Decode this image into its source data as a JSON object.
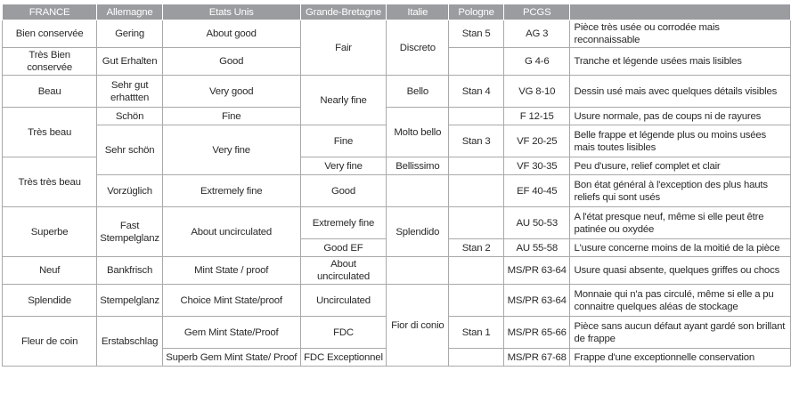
{
  "headers": [
    "FRANCE",
    "Allemagne",
    "Etats Unis",
    "Grande-Bretagne",
    "Italie",
    "Pologne",
    "PCGS",
    ""
  ],
  "cells": {
    "fr": [
      "Bien conservée",
      "Très Bien conservée",
      "Beau",
      "Très beau",
      "Très très beau",
      "Superbe",
      "Neuf",
      "Splendide",
      "Fleur de coin"
    ],
    "de": [
      "Gering",
      "Gut Erhalten",
      "Sehr gut erhattten",
      "Schön",
      "Sehr schön",
      "Vorzüglich",
      "Fast Stempelglanz",
      "Bankfrisch",
      "Stempelglanz",
      "Erstabschlag"
    ],
    "us": [
      "About good",
      "Good",
      "Very good",
      "Fine",
      "Very fine",
      "Extremely fine",
      "About uncirculated",
      "Mint State / proof",
      "Choice Mint State/proof",
      "Gem Mint State/Proof",
      "Superb Gem Mint State/ Proof"
    ],
    "gb": [
      "Fair",
      "Nearly fine",
      "Fine",
      "Very fine",
      "Good",
      "Extremely fine",
      "Good EF",
      "About uncirculated",
      "Uncirculated",
      "FDC",
      "FDC Exceptionnel"
    ],
    "it": [
      "Discreto",
      "Bello",
      "Molto bello",
      "Bellissimo",
      "Splendido",
      "Fior di conio"
    ],
    "pl": [
      "Stan 5",
      "Stan 4",
      "Stan 3",
      "Stan 2",
      "Stan 1"
    ],
    "pcgs": [
      "AG 3",
      "G 4-6",
      "VG 8-10",
      "F 12-15",
      "VF 20-25",
      "VF 30-35",
      "EF 40-45",
      "AU 50-53",
      "AU 55-58",
      "MS/PR 63-64",
      "MS/PR 63-64",
      "MS/PR 65-66",
      "MS/PR 67-68"
    ],
    "desc": [
      "Pièce très usée ou corrodée mais reconnaissable",
      "Tranche et légende usées mais lisibles",
      "Dessin usé mais avec quelques détails visibles",
      "Usure normale, pas de coups ni de rayures",
      "Belle frappe et légende plus ou moins usées mais toutes lisibles",
      "Peu d'usure, relief complet et clair",
      "Bon état général à l'exception des plus hauts reliefs qui sont usés",
      "A l'état presque neuf, même si elle peut être patinée ou oxydée",
      "L'usure concerne moins de la moitié de la pièce",
      "Usure quasi absente, quelques griffes ou chocs",
      "Monnaie qui n'a pas circulé, même si elle a pu connaitre quelques aléas de stockage",
      "Pièce sans aucun défaut ayant gardé son brillant de frappe",
      "Frappe d'une exceptionnelle conservation"
    ]
  }
}
